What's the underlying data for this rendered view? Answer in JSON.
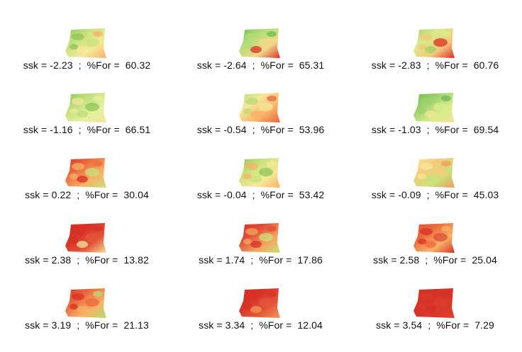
{
  "panels": [
    {
      "caption": "ssk = -2.23  ;  %For =  60.32",
      "ssk": -2.23,
      "for_pct": 60.32,
      "palette": [
        "#8cc65a",
        "#c7e27b",
        "#f5e89a",
        "#f7b267"
      ]
    },
    {
      "caption": "ssk = -2.64  ;  %For =  65.31",
      "ssk": -2.64,
      "for_pct": 65.31,
      "palette": [
        "#6dba57",
        "#b4dc76",
        "#f2d98a",
        "#d73027"
      ]
    },
    {
      "caption": "ssk = -2.83  ;  %For =  60.76",
      "ssk": -2.83,
      "for_pct": 60.76,
      "palette": [
        "#9ed06b",
        "#d8ec8b",
        "#f6c77a",
        "#d73027"
      ]
    },
    {
      "caption": "ssk = -1.16  ;  %For =  66.51",
      "ssk": -1.16,
      "for_pct": 66.51,
      "palette": [
        "#8cc65a",
        "#bfe07a",
        "#e6f0a0",
        "#f2e49a"
      ]
    },
    {
      "caption": "ssk = -0.54  ;  %For =  53.96",
      "ssk": -0.54,
      "for_pct": 53.96,
      "palette": [
        "#b4dc76",
        "#f5e89a",
        "#f7b267",
        "#e8653f"
      ]
    },
    {
      "caption": "ssk = -1.03  ;  %For =  69.54",
      "ssk": -1.03,
      "for_pct": 69.54,
      "palette": [
        "#6dba57",
        "#9ed06b",
        "#d8ec8b",
        "#f2e49a"
      ]
    },
    {
      "caption": "ssk = 0.22  ;  %For =  30.04",
      "ssk": 0.22,
      "for_pct": 30.04,
      "palette": [
        "#d73027",
        "#ec6a3e",
        "#f7b267",
        "#c7e27b"
      ]
    },
    {
      "caption": "ssk = -0.04  ;  %For =  53.42",
      "ssk": -0.04,
      "for_pct": 53.42,
      "palette": [
        "#8cc65a",
        "#c7e27b",
        "#f5e89a",
        "#f7b267"
      ]
    },
    {
      "caption": "ssk = -0.09  ;  %For =  45.03",
      "ssk": -0.09,
      "for_pct": 45.03,
      "palette": [
        "#f5e89a",
        "#f7c97a",
        "#c7e27b",
        "#f09a5a"
      ]
    },
    {
      "caption": "ssk = 2.38  ;  %For =  13.82",
      "ssk": 2.38,
      "for_pct": 13.82,
      "palette": [
        "#d73027",
        "#d73027",
        "#e3553a",
        "#f2e49a"
      ]
    },
    {
      "caption": "ssk = 1.74  ;  %For =  17.86",
      "ssk": 1.74,
      "for_pct": 17.86,
      "palette": [
        "#d73027",
        "#e04c35",
        "#f6a45f",
        "#c7e27b"
      ]
    },
    {
      "caption": "ssk = 2.58  ;  %For =  25.04",
      "ssk": 2.58,
      "for_pct": 25.04,
      "palette": [
        "#e04c35",
        "#ec6a3e",
        "#f7b267",
        "#d73027"
      ]
    },
    {
      "caption": "ssk = 3.19  ;  %For =  21.13",
      "ssk": 3.19,
      "for_pct": 21.13,
      "palette": [
        "#d73027",
        "#ec6a3e",
        "#f7b267",
        "#b4dc76"
      ]
    },
    {
      "caption": "ssk = 3.34  ;  %For =  12.04",
      "ssk": 3.34,
      "for_pct": 12.04,
      "palette": [
        "#d73027",
        "#d73027",
        "#e3553a",
        "#f09a5a"
      ]
    },
    {
      "caption": "ssk = 3.54  ;  %For =  7.29",
      "ssk": 3.54,
      "for_pct": 7.29,
      "palette": [
        "#d73027",
        "#d73027",
        "#d9392b",
        "#dc3f2d"
      ]
    }
  ]
}
